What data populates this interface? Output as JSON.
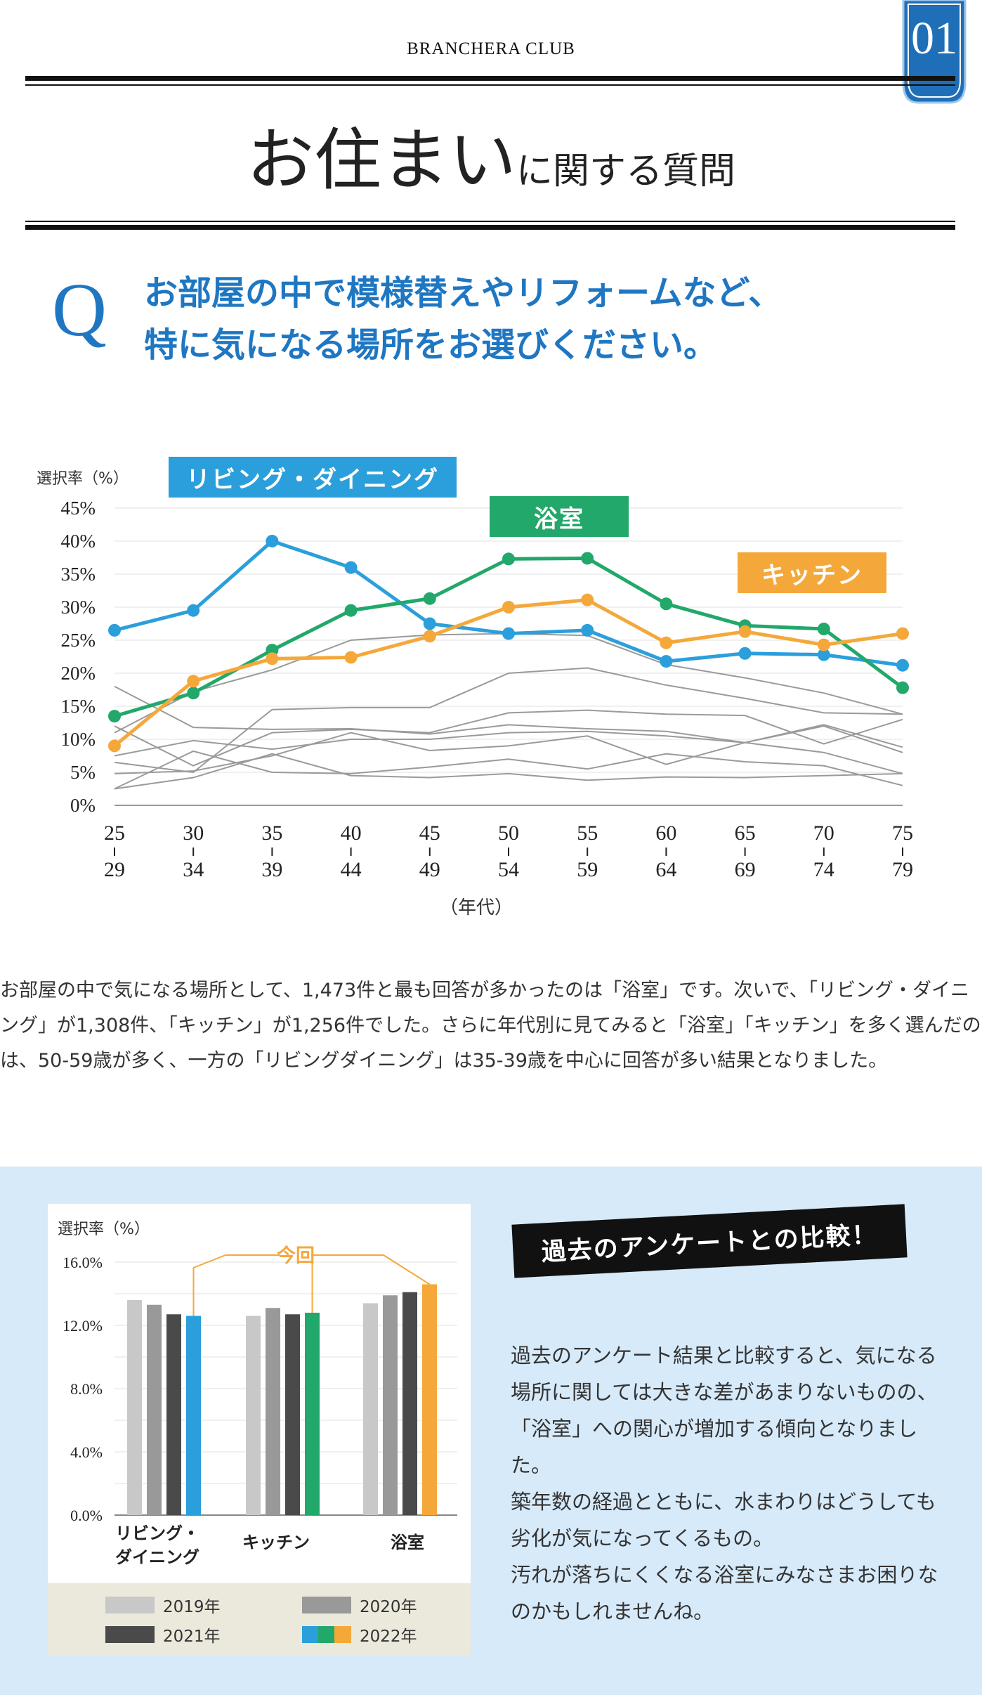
{
  "header": {
    "club": "BRANCHERA CLUB",
    "badge": "01",
    "title_big": "お住まい",
    "title_small": "に関する質問"
  },
  "question": {
    "mark": "Q",
    "line1": "お部屋の中で模様替えやリフォームなど、",
    "line2": "特に気になる場所をお選びください。"
  },
  "colors": {
    "blue": "#2b9fdb",
    "green": "#22a86a",
    "orange": "#f5a83a",
    "gray": "#999999",
    "navy": "#1f6fb8"
  },
  "description": "お部屋の中で気になる場所として、1,473件と最も回答が多かったのは「浴室」です。次いで、「リビング・ダイニング」が1,308件、「キッチン」が1,256件でした。さらに年代別に見てみると「浴室」「キッチン」を多く選んだのは、50-59歳が多く、一方の「リビングダイニング」は35-39歳を中心に回答が多い結果となりました。",
  "comparison": {
    "label": "過去のアンケートとの比較！",
    "paragraphs": [
      "過去のアンケート結果と比較すると、気になる場所に関しては大きな差があまりないものの、「浴室」への関心が増加する傾向となりました。",
      "築年数の経過とともに、水まわりはどうしても劣化が気になってくるもの。",
      "汚れが落ちにくくなる浴室にみなさまお困りなのかもしれませんね。"
    ]
  },
  "chart_data": [
    {
      "type": "line",
      "ylabel": "選択率（%）",
      "xlabel": "（年代）",
      "ylim": [
        0,
        45
      ],
      "yticks": [
        "0%",
        "5%",
        "10%",
        "15%",
        "20%",
        "25%",
        "30%",
        "35%",
        "40%",
        "45%"
      ],
      "categories_top": [
        "25",
        "30",
        "35",
        "40",
        "45",
        "50",
        "55",
        "60",
        "65",
        "70",
        "75"
      ],
      "categories_bottom": [
        "29",
        "34",
        "39",
        "44",
        "49",
        "54",
        "59",
        "64",
        "69",
        "74",
        "79"
      ],
      "series": [
        {
          "name": "リビング・ダイニング",
          "color": "blue",
          "values": [
            26.5,
            29.5,
            40.0,
            36.0,
            27.5,
            26.0,
            26.5,
            21.8,
            23.0,
            22.8,
            21.2
          ]
        },
        {
          "name": "浴室",
          "color": "green",
          "values": [
            13.5,
            17.0,
            23.5,
            29.5,
            31.3,
            37.3,
            37.4,
            30.5,
            27.2,
            26.7,
            17.8
          ]
        },
        {
          "name": "キッチン",
          "color": "orange",
          "values": [
            9.0,
            18.8,
            22.2,
            22.4,
            25.6,
            30.0,
            31.1,
            24.6,
            26.3,
            24.3,
            26.0
          ]
        }
      ],
      "other_series": [
        [
          18.0,
          11.8,
          11.5,
          11.6,
          10.8,
          12.2,
          11.6,
          11.2,
          9.5,
          12.2,
          8.8
        ],
        [
          6.5,
          5.0,
          14.5,
          14.8,
          14.8,
          20.0,
          20.8,
          18.2,
          16.2,
          14.0,
          13.8
        ],
        [
          11.0,
          17.2,
          20.5,
          25.0,
          25.8,
          26.0,
          25.7,
          21.3,
          19.3,
          17.0,
          13.8
        ],
        [
          7.5,
          9.8,
          8.5,
          10.0,
          10.0,
          11.0,
          11.2,
          10.5,
          9.5,
          8.0,
          4.8
        ],
        [
          4.8,
          5.2,
          7.5,
          11.0,
          8.3,
          9.0,
          10.5,
          6.2,
          9.5,
          12.0,
          8.0
        ],
        [
          2.5,
          8.2,
          5.0,
          4.8,
          5.8,
          7.0,
          5.5,
          7.8,
          6.6,
          6.0,
          3.0
        ],
        [
          2.5,
          4.2,
          7.8,
          4.5,
          4.2,
          4.8,
          3.8,
          4.3,
          4.2,
          4.5,
          4.8
        ],
        [
          12.0,
          6.0,
          11.0,
          11.5,
          11.0,
          14.0,
          14.4,
          13.8,
          13.6,
          9.3,
          13.0
        ]
      ],
      "legend": [
        "リビング・ダイニング",
        "浴室",
        "キッチン"
      ]
    },
    {
      "type": "bar",
      "ylabel": "選択率（%）",
      "ylim": [
        0,
        16
      ],
      "yticks": [
        "0.0%",
        "4.0%",
        "8.0%",
        "12.0%",
        "16.0%"
      ],
      "categories": [
        "リビング・ダイニング",
        "キッチン",
        "浴室"
      ],
      "category_lines": [
        [
          "リビング・",
          "ダイニング"
        ],
        [
          "キッチン"
        ],
        [
          "浴室"
        ]
      ],
      "annotation": "今回",
      "series": [
        {
          "name": "2019年",
          "values": [
            13.6,
            12.6,
            13.4
          ]
        },
        {
          "name": "2020年",
          "values": [
            13.3,
            13.1,
            13.9
          ]
        },
        {
          "name": "2021年",
          "values": [
            12.7,
            12.7,
            14.1
          ]
        },
        {
          "name": "2022年",
          "values": [
            12.6,
            12.8,
            14.6
          ]
        }
      ],
      "series_colors": [
        "#c8c8c8",
        "#999999",
        "#4a4a4a",
        "highlight"
      ],
      "highlight_colors": [
        "#2b9fdb",
        "#22a86a",
        "#f5a83a"
      ],
      "legend": [
        "2019年",
        "2020年",
        "2021年",
        "2022年"
      ]
    }
  ]
}
